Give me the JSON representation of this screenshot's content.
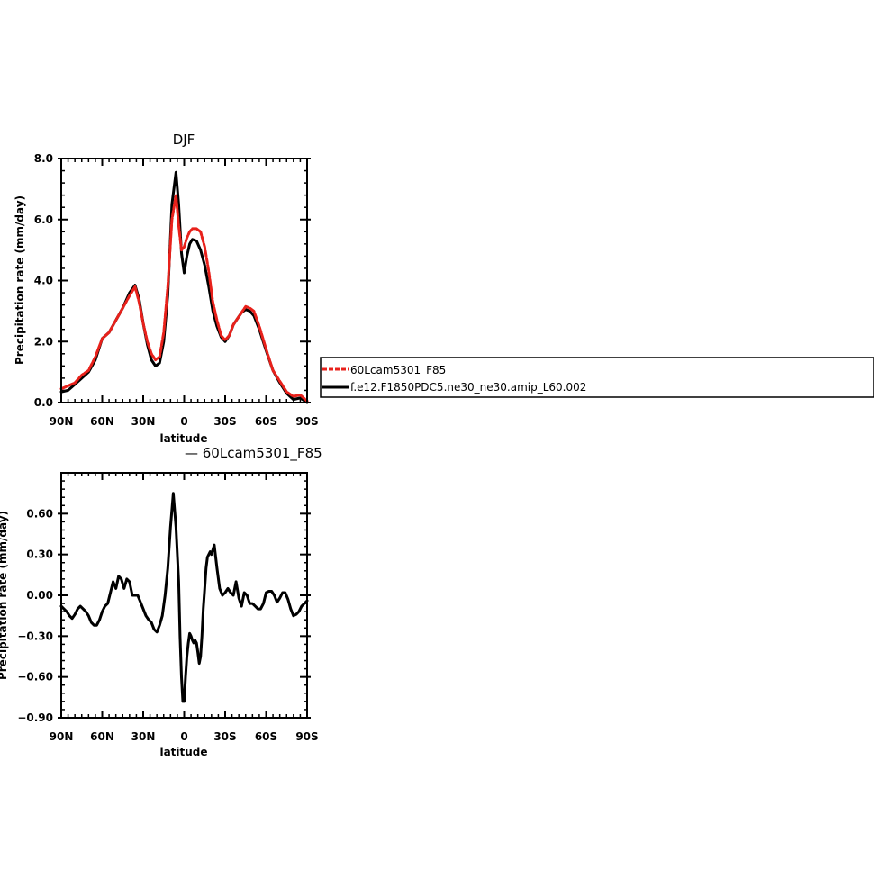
{
  "chart_data": [
    {
      "type": "line",
      "title": "DJF",
      "xlabel": "latitude",
      "ylabel": "Precipitation rate (mm/day)",
      "xlim": [
        -90,
        90
      ],
      "ylim": [
        0,
        8
      ],
      "x_ticks": [
        -90,
        -60,
        -30,
        0,
        30,
        60,
        90
      ],
      "x_tick_labels": [
        "90N",
        "60N",
        "30N",
        "0",
        "30S",
        "60S",
        "90S"
      ],
      "y_ticks": [
        0,
        2,
        4,
        6,
        8
      ],
      "y_tick_labels": [
        "0.0",
        "2.0",
        "4.0",
        "6.0",
        "8.0"
      ],
      "legend": {
        "placement": "right",
        "entries": [
          "60Lcam5301_F85",
          "f.e12.F1850PDC5.ne30_ne30.amip_L60.002"
        ]
      },
      "series": [
        {
          "name": "60Lcam5301_F85",
          "color": "#e8211b",
          "dashed": true,
          "x": [
            -90,
            -85,
            -80,
            -75,
            -70,
            -65,
            -60,
            -55,
            -50,
            -45,
            -40,
            -36,
            -33,
            -30,
            -27,
            -24,
            -21,
            -18,
            -15,
            -12,
            -9,
            -6,
            -4,
            -2,
            0,
            2,
            4,
            6,
            9,
            12,
            15,
            18,
            21,
            24,
            27,
            30,
            33,
            36,
            39,
            42,
            45,
            48,
            51,
            55,
            60,
            65,
            70,
            75,
            80,
            85,
            90
          ],
          "y": [
            0.45,
            0.55,
            0.65,
            0.9,
            1.05,
            1.5,
            2.1,
            2.3,
            2.7,
            3.1,
            3.5,
            3.8,
            3.3,
            2.6,
            2.0,
            1.6,
            1.4,
            1.5,
            2.3,
            3.8,
            6.0,
            6.8,
            5.8,
            5.0,
            5.1,
            5.4,
            5.6,
            5.7,
            5.7,
            5.6,
            5.1,
            4.3,
            3.3,
            2.7,
            2.2,
            2.05,
            2.2,
            2.55,
            2.75,
            2.95,
            3.15,
            3.1,
            3.0,
            2.5,
            1.75,
            1.05,
            0.7,
            0.35,
            0.2,
            0.25,
            0.05
          ]
        },
        {
          "name": "f.e12.F1850PDC5.ne30_ne30.amip_L60.002",
          "color": "#000000",
          "dashed": false,
          "x": [
            -90,
            -85,
            -80,
            -75,
            -70,
            -65,
            -60,
            -55,
            -50,
            -45,
            -40,
            -36,
            -33,
            -30,
            -27,
            -24,
            -21,
            -18,
            -15,
            -12,
            -9,
            -6,
            -4,
            -2,
            0,
            2,
            4,
            6,
            9,
            12,
            15,
            18,
            21,
            24,
            27,
            30,
            33,
            36,
            39,
            42,
            45,
            48,
            51,
            55,
            60,
            65,
            70,
            75,
            80,
            85,
            90
          ],
          "y": [
            0.35,
            0.4,
            0.6,
            0.8,
            1.0,
            1.4,
            2.1,
            2.3,
            2.7,
            3.1,
            3.6,
            3.85,
            3.4,
            2.6,
            1.9,
            1.4,
            1.2,
            1.3,
            2.0,
            3.5,
            6.5,
            7.55,
            6.5,
            4.9,
            4.25,
            4.8,
            5.2,
            5.35,
            5.3,
            5.0,
            4.5,
            3.8,
            3.0,
            2.5,
            2.15,
            2.0,
            2.2,
            2.55,
            2.75,
            2.95,
            3.05,
            3.0,
            2.85,
            2.4,
            1.7,
            1.05,
            0.65,
            0.3,
            0.1,
            0.15,
            0.0
          ]
        }
      ]
    },
    {
      "type": "line",
      "title": "— 60Lcam5301_F85",
      "xlabel": "latitude",
      "ylabel": "Precipitation rate (mm/day)",
      "xlim": [
        -90,
        90
      ],
      "ylim": [
        -0.9,
        0.9
      ],
      "x_ticks": [
        -90,
        -60,
        -30,
        0,
        30,
        60,
        90
      ],
      "x_tick_labels": [
        "90N",
        "60N",
        "30N",
        "0",
        "30S",
        "60S",
        "90S"
      ],
      "y_ticks": [
        -0.9,
        -0.6,
        -0.3,
        0,
        0.3,
        0.6
      ],
      "y_tick_labels": [
        "−0.90",
        "−0.60",
        "−0.30",
        "0.00",
        "0.30",
        "0.60"
      ],
      "series": [
        {
          "color": "#000000",
          "dashed": false,
          "x": [
            -90,
            -88,
            -86,
            -84,
            -82,
            -80,
            -78,
            -76,
            -74,
            -72,
            -70,
            -68,
            -66,
            -64,
            -62,
            -60,
            -58,
            -56,
            -54,
            -52,
            -50,
            -48,
            -46,
            -44,
            -42,
            -40,
            -38,
            -36,
            -34,
            -32,
            -30,
            -28,
            -26,
            -24,
            -22,
            -20,
            -18,
            -16,
            -14,
            -12,
            -10,
            -8,
            -6,
            -4,
            -3,
            -2,
            -1,
            0,
            1,
            2,
            3,
            4,
            5,
            6,
            7,
            8,
            9,
            10,
            11,
            12,
            13,
            14,
            15,
            16,
            17,
            18,
            19,
            20,
            22,
            24,
            26,
            28,
            30,
            32,
            34,
            36,
            38,
            40,
            42,
            44,
            46,
            48,
            50,
            52,
            54,
            56,
            58,
            60,
            62,
            64,
            66,
            68,
            70,
            72,
            74,
            76,
            78,
            80,
            82,
            84,
            86,
            88,
            90
          ],
          "y": [
            -0.08,
            -0.1,
            -0.12,
            -0.15,
            -0.17,
            -0.14,
            -0.1,
            -0.08,
            -0.1,
            -0.12,
            -0.15,
            -0.2,
            -0.22,
            -0.22,
            -0.18,
            -0.12,
            -0.08,
            -0.06,
            0.02,
            0.1,
            0.05,
            0.14,
            0.12,
            0.05,
            0.12,
            0.1,
            0.0,
            0.0,
            0.0,
            -0.05,
            -0.1,
            -0.15,
            -0.18,
            -0.2,
            -0.25,
            -0.27,
            -0.22,
            -0.15,
            0.0,
            0.2,
            0.5,
            0.75,
            0.5,
            0.1,
            -0.3,
            -0.6,
            -0.78,
            -0.78,
            -0.6,
            -0.45,
            -0.35,
            -0.28,
            -0.3,
            -0.33,
            -0.35,
            -0.33,
            -0.35,
            -0.42,
            -0.5,
            -0.45,
            -0.3,
            -0.1,
            0.05,
            0.2,
            0.28,
            0.3,
            0.32,
            0.3,
            0.37,
            0.2,
            0.05,
            0.0,
            0.02,
            0.05,
            0.02,
            0.0,
            0.1,
            -0.02,
            -0.08,
            0.02,
            0.0,
            -0.06,
            -0.06,
            -0.08,
            -0.1,
            -0.1,
            -0.06,
            0.02,
            0.03,
            0.03,
            0.0,
            -0.05,
            -0.02,
            0.02,
            0.02,
            -0.03,
            -0.1,
            -0.15,
            -0.14,
            -0.12,
            -0.08,
            -0.06,
            -0.04
          ]
        }
      ]
    }
  ]
}
